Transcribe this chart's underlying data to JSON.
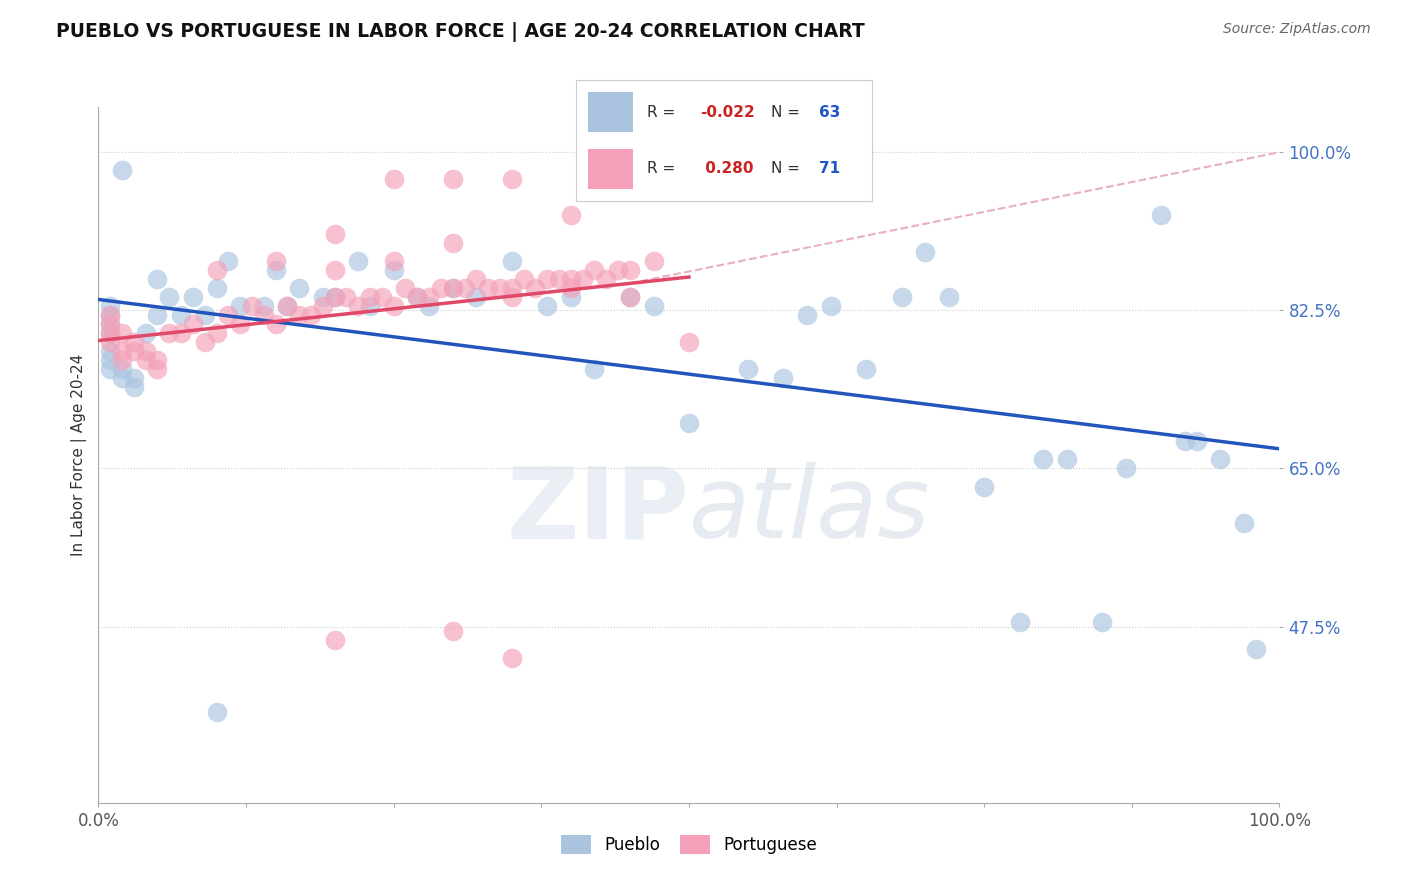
{
  "title": "PUEBLO VS PORTUGUESE IN LABOR FORCE | AGE 20-24 CORRELATION CHART",
  "source": "Source: ZipAtlas.com",
  "ylabel": "In Labor Force | Age 20-24",
  "watermark": "ZIPatlas",
  "pueblo_R": -0.022,
  "pueblo_N": 63,
  "portuguese_R": 0.28,
  "portuguese_N": 71,
  "pueblo_color": "#aac4e0",
  "pueblo_edge_color": "#aac4e0",
  "portuguese_color": "#f4a0b8",
  "portuguese_edge_color": "#f4a0b8",
  "pueblo_trend_color": "#2255bb",
  "portuguese_trend_color": "#e04868",
  "dashed_line_color": "#e8b0c0",
  "xlim": [
    0.0,
    1.0
  ],
  "ylim": [
    0.28,
    1.05
  ],
  "yticks": [
    0.475,
    0.65,
    0.825,
    1.0
  ],
  "ytick_labels": [
    "47.5%",
    "65.0%",
    "82.5%",
    "100.0%"
  ],
  "grid_color": "#cccccc",
  "background_color": "#ffffff",
  "legend_R_color": "#cc2222",
  "legend_N_color": "#2255cc",
  "pueblo_x": [
    0.02,
    0.01,
    0.01,
    0.01,
    0.01,
    0.01,
    0.01,
    0.01,
    0.02,
    0.02,
    0.03,
    0.03,
    0.04,
    0.05,
    0.05,
    0.06,
    0.07,
    0.08,
    0.09,
    0.1,
    0.11,
    0.12,
    0.14,
    0.15,
    0.16,
    0.17,
    0.19,
    0.2,
    0.22,
    0.23,
    0.25,
    0.27,
    0.28,
    0.3,
    0.32,
    0.35,
    0.38,
    0.4,
    0.42,
    0.45,
    0.47,
    0.5,
    0.55,
    0.58,
    0.6,
    0.62,
    0.65,
    0.68,
    0.7,
    0.72,
    0.75,
    0.78,
    0.8,
    0.82,
    0.85,
    0.87,
    0.9,
    0.92,
    0.93,
    0.95,
    0.97,
    0.98,
    0.1
  ],
  "pueblo_y": [
    0.98,
    0.83,
    0.82,
    0.81,
    0.8,
    0.78,
    0.77,
    0.76,
    0.76,
    0.75,
    0.75,
    0.74,
    0.8,
    0.86,
    0.82,
    0.84,
    0.82,
    0.84,
    0.82,
    0.85,
    0.88,
    0.83,
    0.83,
    0.87,
    0.83,
    0.85,
    0.84,
    0.84,
    0.88,
    0.83,
    0.87,
    0.84,
    0.83,
    0.85,
    0.84,
    0.88,
    0.83,
    0.84,
    0.76,
    0.84,
    0.83,
    0.7,
    0.76,
    0.75,
    0.82,
    0.83,
    0.76,
    0.84,
    0.89,
    0.84,
    0.63,
    0.48,
    0.66,
    0.66,
    0.48,
    0.65,
    0.93,
    0.68,
    0.68,
    0.66,
    0.59,
    0.45,
    0.38
  ],
  "portuguese_x": [
    0.01,
    0.01,
    0.01,
    0.01,
    0.02,
    0.02,
    0.02,
    0.03,
    0.03,
    0.04,
    0.04,
    0.05,
    0.05,
    0.06,
    0.07,
    0.08,
    0.09,
    0.1,
    0.11,
    0.12,
    0.13,
    0.14,
    0.15,
    0.16,
    0.17,
    0.18,
    0.19,
    0.2,
    0.21,
    0.22,
    0.23,
    0.24,
    0.25,
    0.26,
    0.27,
    0.28,
    0.29,
    0.3,
    0.31,
    0.32,
    0.33,
    0.34,
    0.35,
    0.36,
    0.37,
    0.38,
    0.39,
    0.4,
    0.41,
    0.42,
    0.43,
    0.44,
    0.45,
    0.47,
    0.1,
    0.15,
    0.2,
    0.25,
    0.3,
    0.35,
    0.4,
    0.2,
    0.25,
    0.3,
    0.35,
    0.4,
    0.45,
    0.5,
    0.2,
    0.3,
    0.35
  ],
  "portuguese_y": [
    0.82,
    0.81,
    0.8,
    0.79,
    0.8,
    0.78,
    0.77,
    0.79,
    0.78,
    0.78,
    0.77,
    0.77,
    0.76,
    0.8,
    0.8,
    0.81,
    0.79,
    0.8,
    0.82,
    0.81,
    0.83,
    0.82,
    0.81,
    0.83,
    0.82,
    0.82,
    0.83,
    0.84,
    0.84,
    0.83,
    0.84,
    0.84,
    0.83,
    0.85,
    0.84,
    0.84,
    0.85,
    0.85,
    0.85,
    0.86,
    0.85,
    0.85,
    0.85,
    0.86,
    0.85,
    0.86,
    0.86,
    0.86,
    0.86,
    0.87,
    0.86,
    0.87,
    0.87,
    0.88,
    0.87,
    0.88,
    0.91,
    0.97,
    0.97,
    0.97,
    0.93,
    0.87,
    0.88,
    0.9,
    0.84,
    0.85,
    0.84,
    0.79,
    0.46,
    0.47,
    0.44
  ]
}
